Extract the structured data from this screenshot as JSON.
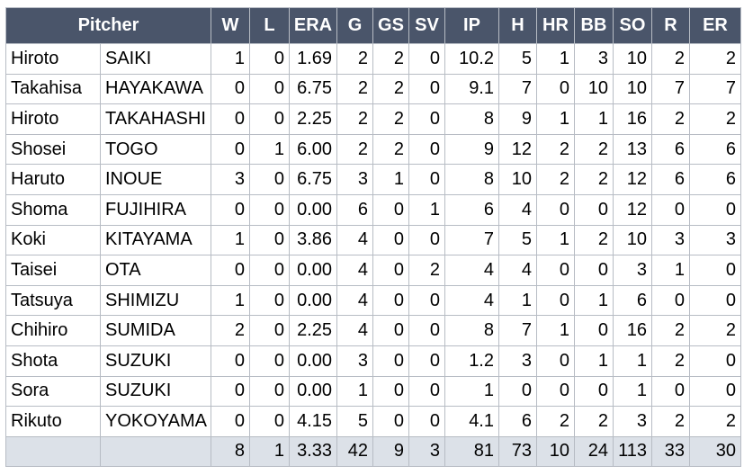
{
  "headers": [
    "Pitcher",
    "W",
    "L",
    "ERA",
    "G",
    "GS",
    "SV",
    "IP",
    "H",
    "HR",
    "BB",
    "SO",
    "R",
    "ER"
  ],
  "rows": [
    {
      "first": "Hiroto",
      "last": "SAIKI",
      "stats": [
        "1",
        "0",
        "1.69",
        "2",
        "2",
        "0",
        "10.2",
        "5",
        "1",
        "3",
        "10",
        "2",
        "2"
      ]
    },
    {
      "first": "Takahisa",
      "last": "HAYAKAWA",
      "stats": [
        "0",
        "0",
        "6.75",
        "2",
        "2",
        "0",
        "9.1",
        "7",
        "0",
        "10",
        "10",
        "7",
        "7"
      ]
    },
    {
      "first": "Hiroto",
      "last": "TAKAHASHI",
      "stats": [
        "0",
        "0",
        "2.25",
        "2",
        "2",
        "0",
        "8",
        "9",
        "1",
        "1",
        "16",
        "2",
        "2"
      ]
    },
    {
      "first": "Shosei",
      "last": "TOGO",
      "stats": [
        "0",
        "1",
        "6.00",
        "2",
        "2",
        "0",
        "9",
        "12",
        "2",
        "2",
        "13",
        "6",
        "6"
      ]
    },
    {
      "first": "Haruto",
      "last": "INOUE",
      "stats": [
        "3",
        "0",
        "6.75",
        "3",
        "1",
        "0",
        "8",
        "10",
        "2",
        "2",
        "12",
        "6",
        "6"
      ]
    },
    {
      "first": "Shoma",
      "last": "FUJIHIRA",
      "stats": [
        "0",
        "0",
        "0.00",
        "6",
        "0",
        "1",
        "6",
        "4",
        "0",
        "0",
        "12",
        "0",
        "0"
      ]
    },
    {
      "first": "Koki",
      "last": "KITAYAMA",
      "stats": [
        "1",
        "0",
        "3.86",
        "4",
        "0",
        "0",
        "7",
        "5",
        "1",
        "2",
        "10",
        "3",
        "3"
      ]
    },
    {
      "first": "Taisei",
      "last": "OTA",
      "stats": [
        "0",
        "0",
        "0.00",
        "4",
        "0",
        "2",
        "4",
        "4",
        "0",
        "0",
        "3",
        "1",
        "0"
      ]
    },
    {
      "first": "Tatsuya",
      "last": "SHIMIZU",
      "stats": [
        "1",
        "0",
        "0.00",
        "4",
        "0",
        "0",
        "4",
        "1",
        "0",
        "1",
        "6",
        "0",
        "0"
      ]
    },
    {
      "first": "Chihiro",
      "last": "SUMIDA",
      "stats": [
        "2",
        "0",
        "2.25",
        "4",
        "0",
        "0",
        "8",
        "7",
        "1",
        "0",
        "16",
        "2",
        "2"
      ]
    },
    {
      "first": "Shota",
      "last": "SUZUKI",
      "stats": [
        "0",
        "0",
        "0.00",
        "3",
        "0",
        "0",
        "1.2",
        "3",
        "0",
        "1",
        "1",
        "2",
        "0"
      ]
    },
    {
      "first": "Sora",
      "last": "SUZUKI",
      "stats": [
        "0",
        "0",
        "0.00",
        "1",
        "0",
        "0",
        "1",
        "0",
        "0",
        "0",
        "1",
        "0",
        "0"
      ]
    },
    {
      "first": "Rikuto",
      "last": "YOKOYAMA",
      "stats": [
        "0",
        "0",
        "4.15",
        "5",
        "0",
        "0",
        "4.1",
        "6",
        "2",
        "2",
        "3",
        "2",
        "2"
      ]
    }
  ],
  "totals": [
    "8",
    "1",
    "3.33",
    "42",
    "9",
    "3",
    "81",
    "73",
    "10",
    "24",
    "113",
    "33",
    "30"
  ],
  "colors": {
    "header_bg": "#4a556a",
    "header_text": "#ffffff",
    "totals_bg": "#dce1e8",
    "grid": "#b7bcc4"
  }
}
